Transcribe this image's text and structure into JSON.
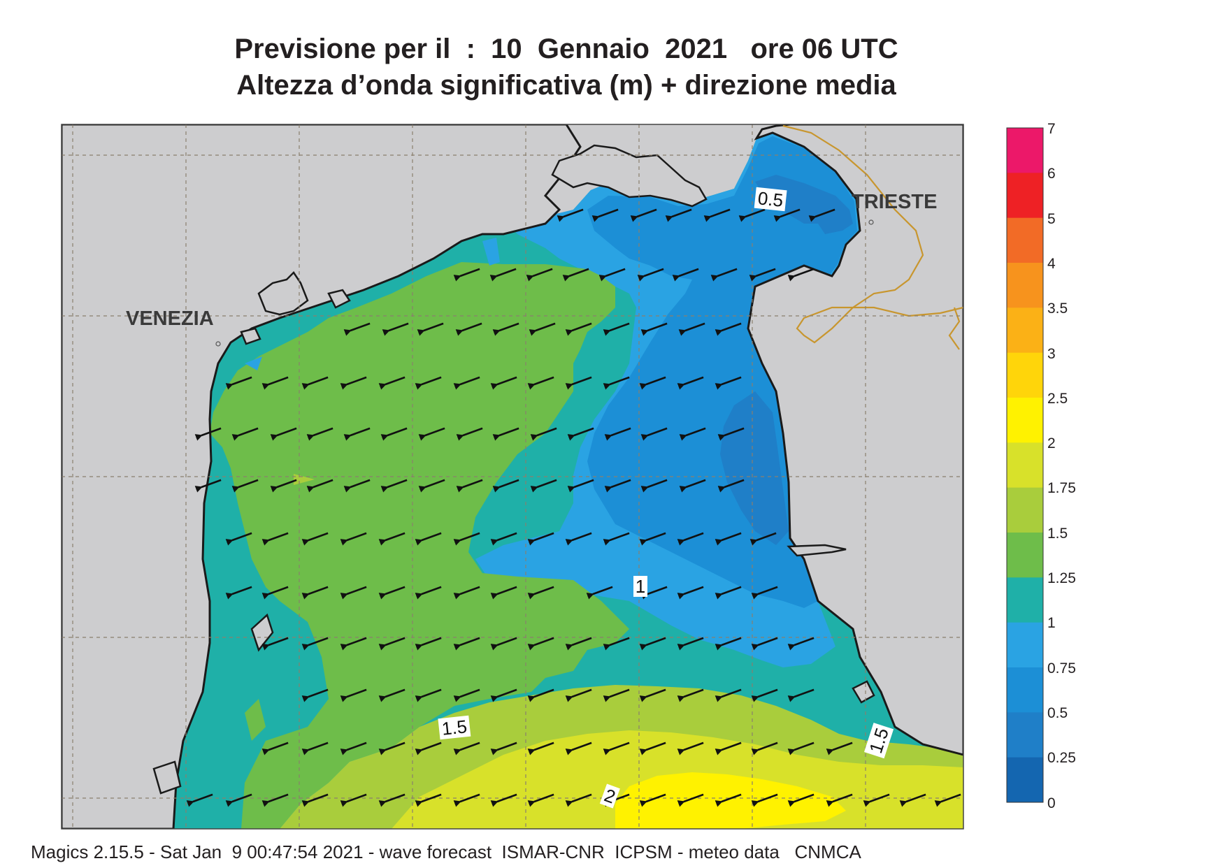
{
  "header": {
    "title_line1": "Previsione per il  :  10  Gennaio  2021   ore 06 UTC",
    "title_line2": "Altezza d’onda significativa (m) + direzione media"
  },
  "map": {
    "cities": [
      {
        "name": "VENEZIA"
      },
      {
        "name": "TRIESTE"
      }
    ],
    "contour_labels": [
      "0.5",
      "1",
      "1.5",
      "1.5",
      "2"
    ],
    "wave_direction": "from east-northeast (arrows point west-southwest)",
    "colors": {
      "land": "#cdcdcf",
      "h_0_25_0_5": "#1f7fc8",
      "h_0_5_0_75": "#1c8fd6",
      "h_0_75_1": "#2aa3e3",
      "h_1_1_25": "#1fb0a8",
      "h_1_25_1_5": "#6ebd4a",
      "h_1_5_1_75": "#a9cd3c",
      "h_1_75_2": "#d8e12a",
      "h_2_2_5": "#fff200",
      "border": "#c8962e"
    }
  },
  "colorbar": {
    "labels": [
      "7",
      "6",
      "5",
      "4",
      "3.5",
      "3",
      "2.5",
      "2",
      "1.75",
      "1.5",
      "1.25",
      "1",
      "0.75",
      "0.5",
      "0.25",
      "0"
    ],
    "colors": [
      "#ec1869",
      "#ee2125",
      "#f26b26",
      "#f7931d",
      "#fbb116",
      "#ffd50a",
      "#fff200",
      "#d8e12a",
      "#a9cd3c",
      "#6ebd4a",
      "#1fb0a8",
      "#2aa3e3",
      "#1c8fd6",
      "#1f7fc8",
      "#1466b0"
    ]
  },
  "footer": {
    "text": "Magics 2.15.5 - Sat Jan  9 00:47:54 2021 - wave forecast  ISMAR-CNR  ICPSM - meteo data   CNMCA"
  }
}
